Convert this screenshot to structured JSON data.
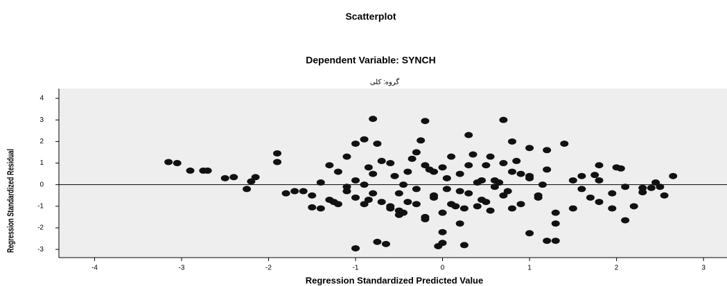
{
  "chart_data": {
    "type": "scatter",
    "title": "Scatterplot",
    "subtitle": "Dependent Variable: SYNCH",
    "panel_label": "گروه: کلی",
    "x_label": "Regression Standardized Predicted Value",
    "y_label": "Regression Standardized Residual",
    "xlim": [
      -4.41,
      3.27
    ],
    "ylim": [
      -3.38,
      4.45
    ],
    "xticks": [
      -4,
      -3,
      -2,
      -1,
      0,
      1,
      2,
      3
    ],
    "yticks": [
      -3,
      -2,
      -1,
      0,
      1,
      2,
      3,
      4
    ],
    "reference_line": 0,
    "color": "#111111",
    "x": [
      -3.15,
      -3.05,
      -2.9,
      -2.75,
      -2.7,
      -2.5,
      -2.4,
      -2.25,
      -2.2,
      -2.15,
      -1.9,
      -1.9,
      -1.8,
      -1.7,
      -1.6,
      -1.5,
      -1.4,
      -1.3,
      -1.25,
      -1.1,
      -1.0,
      -0.9,
      -0.8,
      -0.75,
      -1.0,
      -0.75,
      -0.65,
      -0.5,
      -0.3,
      -0.25,
      -0.1,
      0.0,
      -0.05,
      0.0,
      0.25,
      0.2,
      -0.2,
      0.3,
      0.7,
      0.8,
      1.0,
      1.2,
      1.4,
      1.3,
      1.2,
      1.0,
      1.3,
      1.5,
      1.7,
      1.8,
      1.8,
      1.75,
      1.8,
      1.95,
      1.95,
      2.0,
      2.05,
      2.1,
      2.2,
      2.1,
      2.3,
      2.4,
      2.45,
      2.5,
      2.55,
      2.65,
      2.3,
      1.6,
      1.6,
      1.5,
      -1.5,
      -1.4,
      -1.3,
      -1.2,
      -1.1,
      -1.0,
      -0.9,
      -0.85,
      -0.8,
      -0.7,
      -0.6,
      -0.55,
      -0.5,
      -0.45,
      -0.4,
      -0.35,
      -0.3,
      -0.2,
      -0.15,
      -0.1,
      0.0,
      0.05,
      0.1,
      0.15,
      0.2,
      0.3,
      0.35,
      0.4,
      0.45,
      0.5,
      0.55,
      0.6,
      0.7,
      0.75,
      0.8,
      0.9,
      1.0,
      1.1,
      1.2,
      1.3,
      -1.2,
      -1.0,
      -0.8,
      -0.6,
      -0.4,
      -0.2,
      0.0,
      0.2,
      0.4,
      0.6,
      0.8,
      1.0,
      -0.9,
      -0.7,
      -0.5,
      -0.3,
      -0.1,
      0.1,
      0.3,
      0.5,
      0.7,
      0.9,
      1.1,
      -1.1,
      -0.6,
      -0.2,
      0.25,
      0.55,
      0.85,
      1.15,
      -0.45,
      0.05,
      0.45,
      -0.85,
      0.65
    ],
    "values": [
      1.05,
      1.0,
      0.65,
      0.65,
      0.65,
      0.3,
      0.35,
      -0.2,
      0.15,
      0.35,
      1.45,
      1.05,
      -0.4,
      -0.3,
      -0.3,
      -1.05,
      -1.1,
      0.9,
      -0.8,
      1.3,
      1.9,
      2.1,
      3.05,
      1.9,
      -2.95,
      -2.65,
      -2.75,
      -1.2,
      1.5,
      2.05,
      -0.5,
      -2.2,
      -2.85,
      -2.7,
      -2.8,
      -1.8,
      2.95,
      2.3,
      3.0,
      2.0,
      1.7,
      1.6,
      1.9,
      -2.6,
      -2.6,
      -2.25,
      -1.8,
      -1.1,
      -0.6,
      -0.8,
      0.9,
      0.45,
      0.2,
      -0.4,
      -1.1,
      0.8,
      0.75,
      -1.65,
      -1.0,
      -0.1,
      -0.15,
      -0.15,
      0.1,
      -0.1,
      -0.5,
      0.4,
      -0.35,
      -0.2,
      0.4,
      0.2,
      -0.5,
      0.1,
      -0.7,
      0.6,
      -0.3,
      0.2,
      -0.9,
      0.8,
      -0.4,
      1.1,
      -1.0,
      0.4,
      -1.4,
      0.0,
      -0.8,
      1.2,
      -0.2,
      -1.5,
      0.7,
      -0.6,
      -1.3,
      0.3,
      1.3,
      -1.0,
      0.5,
      -0.4,
      1.4,
      0.1,
      -0.7,
      0.9,
      -1.2,
      0.2,
      1.0,
      -0.3,
      0.6,
      -0.9,
      0.4,
      -0.5,
      0.7,
      -1.3,
      -0.9,
      -0.6,
      0.5,
      -1.1,
      0.6,
      -1.6,
      0.8,
      -0.3,
      -1.0,
      -0.1,
      -1.1,
      0.3,
      0.0,
      -0.8,
      -0.4,
      -0.9,
      0.6,
      -0.9,
      0.9,
      -0.8,
      -0.5,
      0.5,
      -0.6,
      -0.1,
      1.0,
      0.9,
      -1.1,
      1.3,
      1.1,
      0.0,
      -1.3,
      -0.2,
      0.2,
      -0.7,
      0.1
    ]
  }
}
